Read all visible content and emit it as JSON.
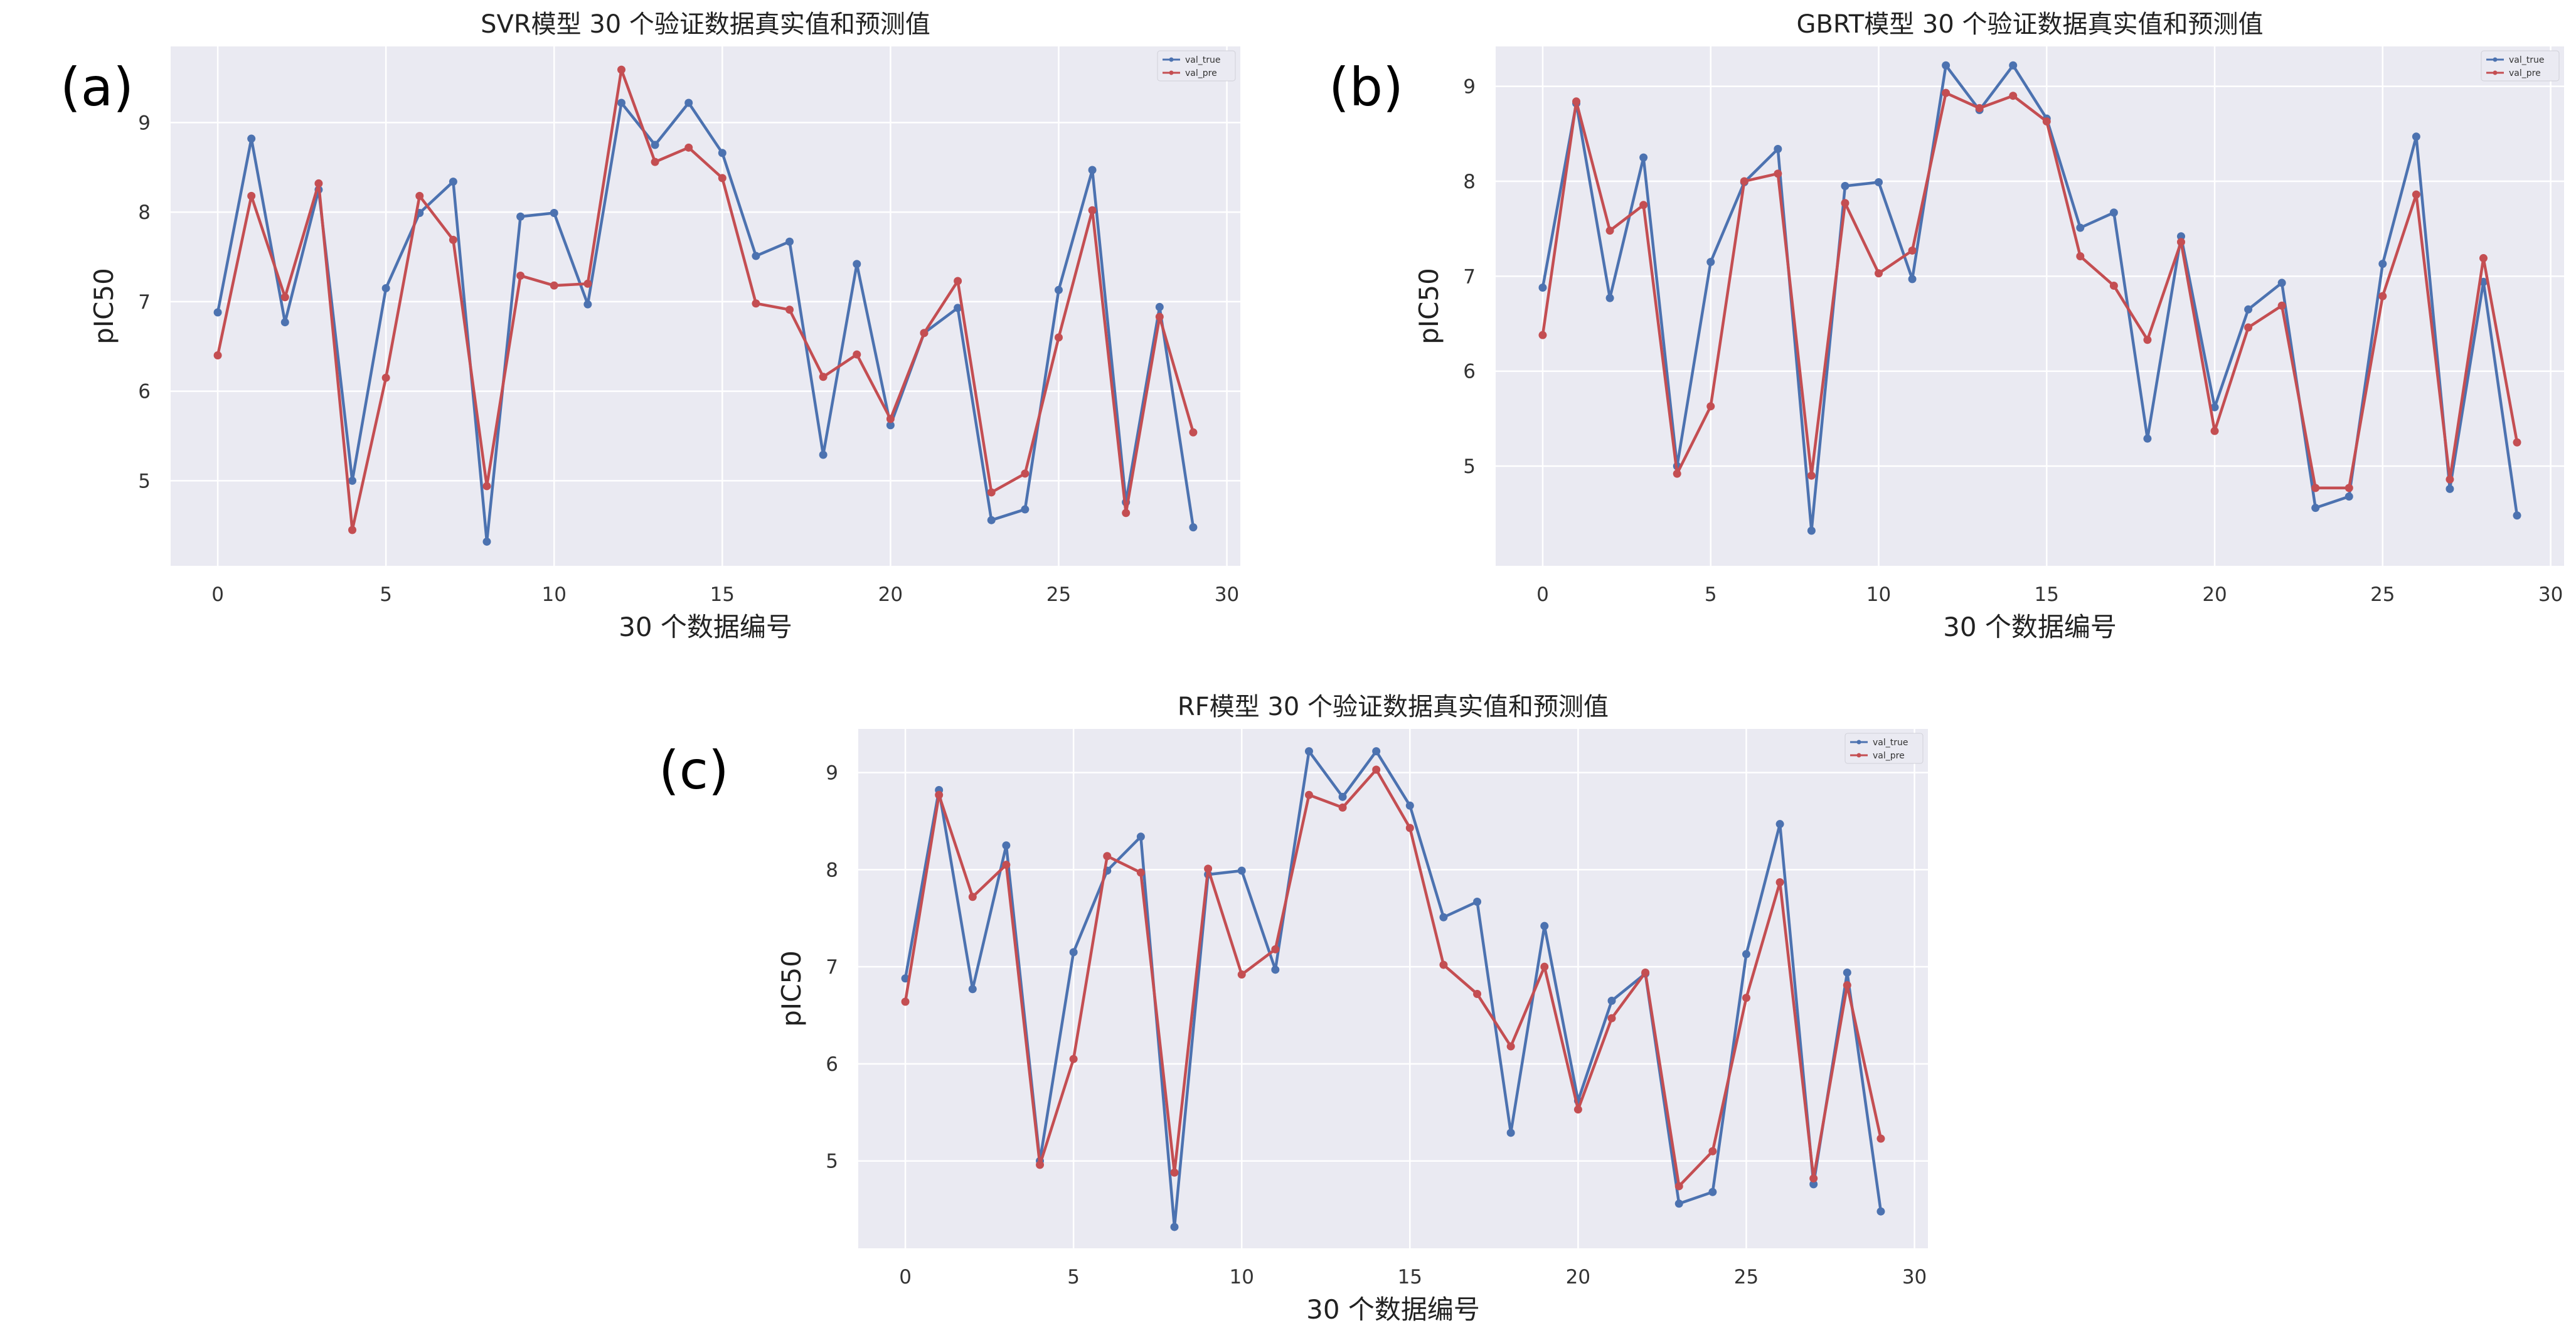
{
  "colors": {
    "val_true": "#4c72b0",
    "val_pre": "#c44e52",
    "plot_bg": "#eaeaf2",
    "grid": "#ffffff"
  },
  "chart_data": [
    {
      "type": "line",
      "panel": "(a)",
      "title": "SVR模型 30 个验证数据真实值和预测值",
      "xlabel": "30 个数据编号",
      "ylabel": "pIC50",
      "xlim": [
        -1.4,
        30.4
      ],
      "ylim": [
        4.05,
        9.85
      ],
      "xticks": [
        0,
        5,
        10,
        15,
        20,
        25,
        30
      ],
      "yticks": [
        5,
        6,
        7,
        8,
        9
      ],
      "grid": true,
      "legend_position": "top-right",
      "x": [
        0,
        1,
        2,
        3,
        4,
        5,
        6,
        7,
        8,
        9,
        10,
        11,
        12,
        13,
        14,
        15,
        16,
        17,
        18,
        19,
        20,
        21,
        22,
        23,
        24,
        25,
        26,
        27,
        28,
        29
      ],
      "series": [
        {
          "name": "val_true",
          "values": [
            6.88,
            8.82,
            6.77,
            8.25,
            5.0,
            7.15,
            7.99,
            8.34,
            4.32,
            7.95,
            7.99,
            6.97,
            9.22,
            8.75,
            9.22,
            8.66,
            7.51,
            7.67,
            5.29,
            7.42,
            5.62,
            6.65,
            6.93,
            4.56,
            4.68,
            7.13,
            8.47,
            4.76,
            6.94,
            4.48
          ]
        },
        {
          "name": "val_pre",
          "values": [
            6.4,
            8.18,
            7.05,
            8.32,
            4.45,
            6.15,
            8.18,
            7.69,
            4.94,
            7.29,
            7.18,
            7.2,
            9.59,
            8.56,
            8.72,
            8.38,
            6.98,
            6.91,
            6.16,
            6.41,
            5.69,
            6.65,
            7.23,
            4.87,
            5.08,
            6.6,
            8.02,
            4.64,
            6.83,
            5.54
          ]
        }
      ]
    },
    {
      "type": "line",
      "panel": "(b)",
      "title": "GBRT模型 30 个验证数据真实值和预测值",
      "xlabel": "30 个数据编号",
      "ylabel": "pIC50",
      "xlim": [
        -1.4,
        30.4
      ],
      "ylim": [
        3.95,
        9.42
      ],
      "xticks": [
        0,
        5,
        10,
        15,
        20,
        25,
        30
      ],
      "yticks": [
        5,
        6,
        7,
        8,
        9
      ],
      "grid": true,
      "legend_position": "top-right",
      "x": [
        0,
        1,
        2,
        3,
        4,
        5,
        6,
        7,
        8,
        9,
        10,
        11,
        12,
        13,
        14,
        15,
        16,
        17,
        18,
        19,
        20,
        21,
        22,
        23,
        24,
        25,
        26,
        27,
        28,
        29
      ],
      "series": [
        {
          "name": "val_true",
          "values": [
            6.88,
            8.82,
            6.77,
            8.25,
            5.0,
            7.15,
            7.99,
            8.34,
            4.32,
            7.95,
            7.99,
            6.97,
            9.22,
            8.75,
            9.22,
            8.66,
            7.51,
            7.67,
            5.29,
            7.42,
            5.62,
            6.65,
            6.93,
            4.56,
            4.68,
            7.13,
            8.47,
            4.76,
            6.94,
            4.48
          ]
        },
        {
          "name": "val_pre",
          "values": [
            6.38,
            8.84,
            7.48,
            7.75,
            4.92,
            5.63,
            8.0,
            8.08,
            4.9,
            7.77,
            7.03,
            7.27,
            8.93,
            8.77,
            8.9,
            8.63,
            7.21,
            6.9,
            6.33,
            7.36,
            5.37,
            6.46,
            6.69,
            4.77,
            4.77,
            6.79,
            7.86,
            4.86,
            7.19,
            5.25
          ]
        }
      ]
    },
    {
      "type": "line",
      "panel": "(c)",
      "title": "RF模型 30 个验证数据真实值和预测值",
      "xlabel": "30 个数据编号",
      "ylabel": "pIC50",
      "xlim": [
        -1.4,
        30.4
      ],
      "ylim": [
        4.1,
        9.45
      ],
      "xticks": [
        0,
        5,
        10,
        15,
        20,
        25,
        30
      ],
      "yticks": [
        5,
        6,
        7,
        8,
        9
      ],
      "grid": true,
      "legend_position": "top-right",
      "x": [
        0,
        1,
        2,
        3,
        4,
        5,
        6,
        7,
        8,
        9,
        10,
        11,
        12,
        13,
        14,
        15,
        16,
        17,
        18,
        19,
        20,
        21,
        22,
        23,
        24,
        25,
        26,
        27,
        28,
        29
      ],
      "series": [
        {
          "name": "val_true",
          "values": [
            6.88,
            8.82,
            6.77,
            8.25,
            5.0,
            7.15,
            7.99,
            8.34,
            4.32,
            7.95,
            7.99,
            6.97,
            9.22,
            8.75,
            9.22,
            8.66,
            7.51,
            7.67,
            5.29,
            7.42,
            5.62,
            6.65,
            6.93,
            4.56,
            4.68,
            7.13,
            8.47,
            4.76,
            6.94,
            4.48
          ]
        },
        {
          "name": "val_pre",
          "values": [
            6.64,
            8.77,
            7.72,
            8.05,
            4.96,
            6.05,
            8.14,
            7.97,
            4.88,
            8.01,
            6.92,
            7.18,
            8.77,
            8.64,
            9.03,
            8.43,
            7.02,
            6.72,
            6.18,
            7.0,
            5.53,
            6.47,
            6.94,
            4.74,
            5.1,
            6.68,
            7.87,
            4.82,
            6.81,
            5.23
          ]
        }
      ]
    }
  ]
}
